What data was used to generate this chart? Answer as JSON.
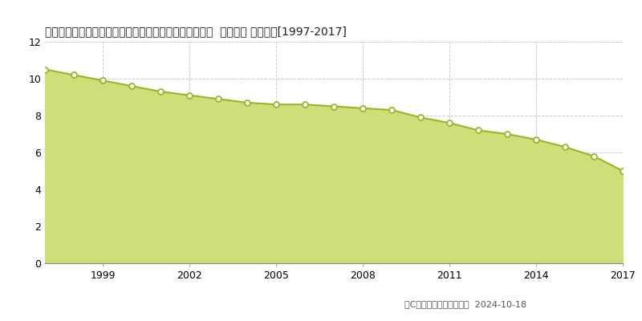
{
  "title": "宮崎県児湯郡都農町大字川北字都農中町４８６３番１内  基準地価 地価推移[1997-2017]",
  "years": [
    1997,
    1998,
    1999,
    2000,
    2001,
    2002,
    2003,
    2004,
    2005,
    2006,
    2007,
    2008,
    2009,
    2010,
    2011,
    2012,
    2013,
    2014,
    2015,
    2016,
    2017
  ],
  "values": [
    10.5,
    10.2,
    9.9,
    9.6,
    9.3,
    9.1,
    8.9,
    8.7,
    8.6,
    8.6,
    8.5,
    8.4,
    8.3,
    7.9,
    7.6,
    7.2,
    7.0,
    6.7,
    6.3,
    5.8,
    5.0
  ],
  "line_color": "#9ab527",
  "fill_color": "#cede78",
  "marker_fill": "#ffffff",
  "marker_edge": "#9ab527",
  "background_color": "#ffffff",
  "grid_color": "#cccccc",
  "ylim": [
    0,
    12
  ],
  "yticks": [
    0,
    2,
    4,
    6,
    8,
    10,
    12
  ],
  "xticks": [
    1999,
    2002,
    2005,
    2008,
    2011,
    2014,
    2017
  ],
  "copyright_text": "（C）土地価格ドットコム  2024-10-18",
  "title_fontsize": 10,
  "axis_fontsize": 9,
  "legend_fontsize": 9
}
